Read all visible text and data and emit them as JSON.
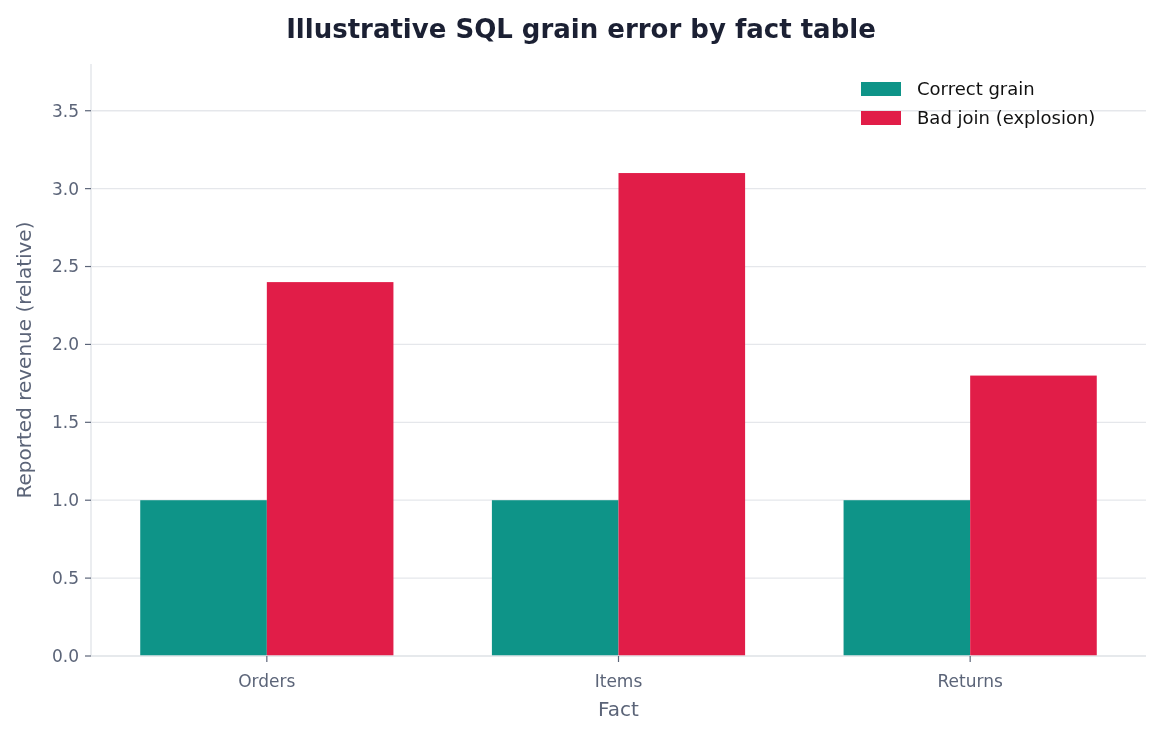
{
  "chart_data": {
    "type": "bar",
    "title": "Illustrative SQL grain error by fact table",
    "xlabel": "Fact",
    "ylabel": "Reported revenue (relative)",
    "categories": [
      "Orders",
      "Items",
      "Returns"
    ],
    "series": [
      {
        "name": "Correct grain",
        "color": "#0e9488",
        "values": [
          1.0,
          1.0,
          1.0
        ]
      },
      {
        "name": "Bad join (explosion)",
        "color": "#e11d48",
        "values": [
          2.4,
          3.1,
          1.8
        ]
      }
    ],
    "ylim": [
      0,
      3.8
    ],
    "yticks": [
      {
        "value": 0,
        "label": "0.0"
      },
      {
        "value": 0.5,
        "label": "0.5"
      },
      {
        "value": 1,
        "label": "1.0"
      },
      {
        "value": 1.5,
        "label": "1.5"
      },
      {
        "value": 2,
        "label": "2.0"
      },
      {
        "value": 2.5,
        "label": "2.5"
      },
      {
        "value": 3,
        "label": "3.0"
      },
      {
        "value": 3.5,
        "label": "3.5"
      }
    ],
    "grid": "y",
    "legend": "top right"
  }
}
